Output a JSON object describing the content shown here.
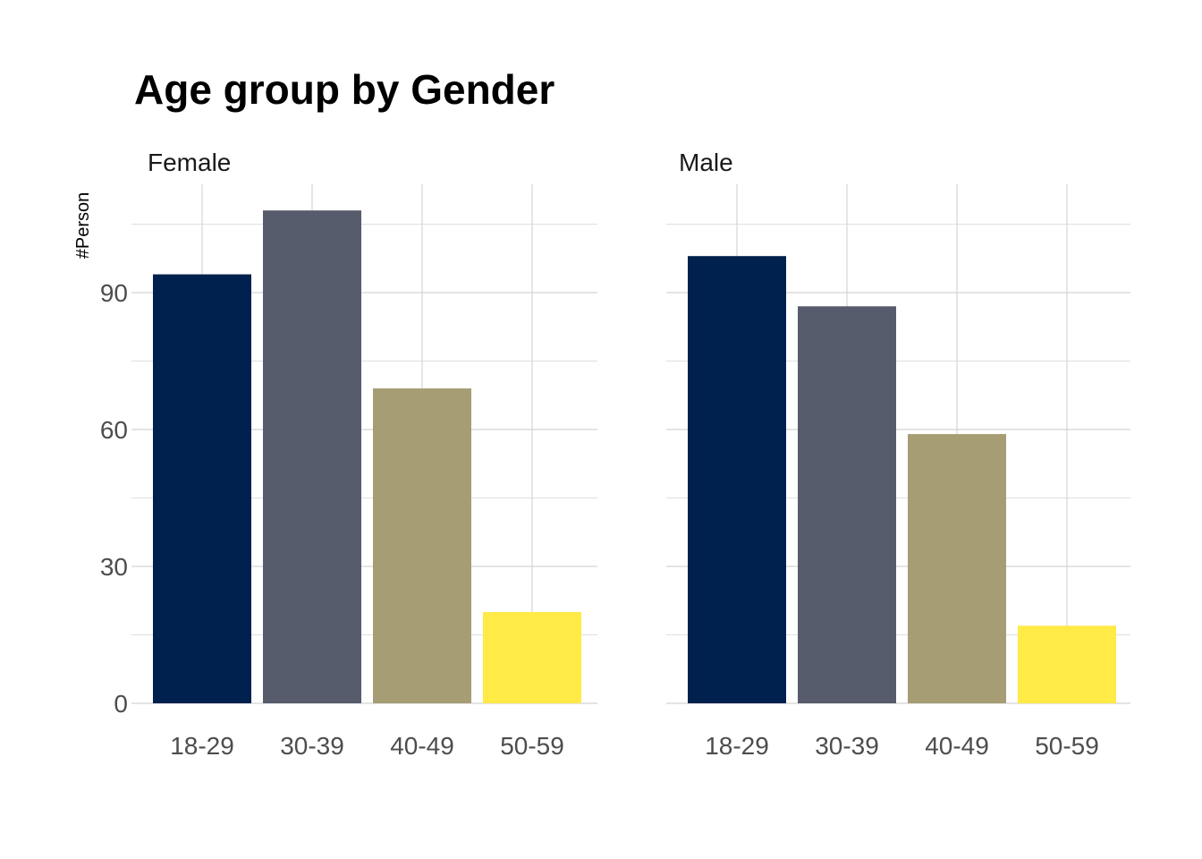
{
  "chart_data": {
    "type": "bar",
    "title": "Age group by Gender",
    "ylabel": "#Person",
    "xlabel": "",
    "ylim": [
      0,
      113
    ],
    "y_ticks": [
      0,
      30,
      60,
      90
    ],
    "y_tick_labels": [
      "0",
      "30",
      "60",
      "90"
    ],
    "categories": [
      "18-29",
      "30-39",
      "40-49",
      "50-59"
    ],
    "category_colors": [
      "#00204D",
      "#575C6D",
      "#A69D75",
      "#FFEA46"
    ],
    "grid": true,
    "legend": "none",
    "facets": [
      {
        "label": "Female",
        "values": [
          94,
          108,
          69,
          20
        ]
      },
      {
        "label": "Male",
        "values": [
          98,
          87,
          59,
          17
        ]
      }
    ]
  }
}
